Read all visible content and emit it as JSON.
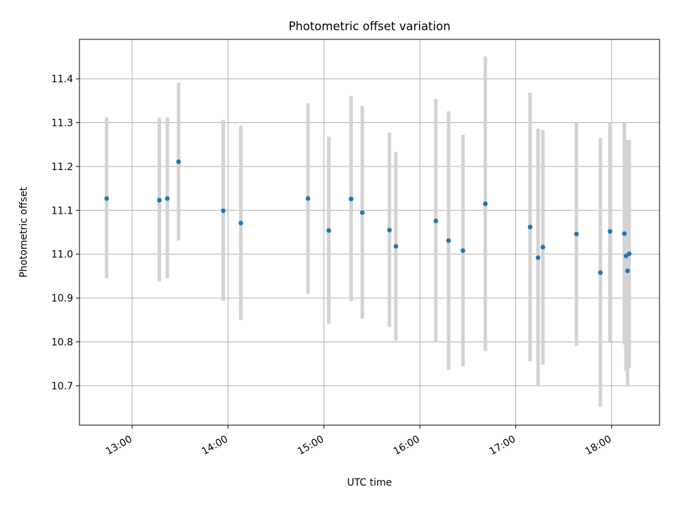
{
  "chart_data": {
    "type": "scatter",
    "title": "Photometric offset variation",
    "xlabel": "UTC time",
    "ylabel": "Photometric offset",
    "x_unit": "hours",
    "xlim": [
      "12:27",
      "18:30"
    ],
    "ylim": [
      10.61,
      11.49
    ],
    "x_ticks": [
      "13:00",
      "14:00",
      "15:00",
      "16:00",
      "17:00",
      "18:00"
    ],
    "y_ticks": [
      "10.7",
      "10.8",
      "10.9",
      "11.0",
      "11.1",
      "11.2",
      "11.3",
      "11.4"
    ],
    "grid": true,
    "point_color": "#1f77b4",
    "errorbar_color": "#d3d3d3",
    "points": [
      {
        "x": "12:44",
        "y": 11.127,
        "ylo": 10.945,
        "yhi": 11.312
      },
      {
        "x": "13:17",
        "y": 11.123,
        "ylo": 10.938,
        "yhi": 11.311
      },
      {
        "x": "13:22",
        "y": 11.127,
        "ylo": 10.945,
        "yhi": 11.312
      },
      {
        "x": "13:29",
        "y": 11.211,
        "ylo": 11.031,
        "yhi": 11.391
      },
      {
        "x": "13:57",
        "y": 11.099,
        "ylo": 10.894,
        "yhi": 11.306
      },
      {
        "x": "14:08",
        "y": 11.071,
        "ylo": 10.85,
        "yhi": 11.293
      },
      {
        "x": "14:50",
        "y": 11.127,
        "ylo": 10.91,
        "yhi": 11.344
      },
      {
        "x": "15:03",
        "y": 11.054,
        "ylo": 10.841,
        "yhi": 11.268
      },
      {
        "x": "15:17",
        "y": 11.126,
        "ylo": 10.893,
        "yhi": 11.361
      },
      {
        "x": "15:24",
        "y": 11.095,
        "ylo": 10.853,
        "yhi": 11.338
      },
      {
        "x": "15:41",
        "y": 11.055,
        "ylo": 10.834,
        "yhi": 11.277
      },
      {
        "x": "15:45",
        "y": 11.018,
        "ylo": 10.803,
        "yhi": 11.233
      },
      {
        "x": "16:10",
        "y": 11.076,
        "ylo": 10.8,
        "yhi": 11.354
      },
      {
        "x": "16:18",
        "y": 11.031,
        "ylo": 10.736,
        "yhi": 11.326
      },
      {
        "x": "16:27",
        "y": 11.008,
        "ylo": 10.744,
        "yhi": 11.272
      },
      {
        "x": "16:41",
        "y": 11.115,
        "ylo": 10.779,
        "yhi": 11.451
      },
      {
        "x": "17:09",
        "y": 11.062,
        "ylo": 10.756,
        "yhi": 11.368
      },
      {
        "x": "17:14",
        "y": 10.992,
        "ylo": 10.7,
        "yhi": 11.286
      },
      {
        "x": "17:17",
        "y": 11.016,
        "ylo": 10.748,
        "yhi": 11.283
      },
      {
        "x": "17:38",
        "y": 11.046,
        "ylo": 10.791,
        "yhi": 11.3
      },
      {
        "x": "17:53",
        "y": 10.958,
        "ylo": 10.652,
        "yhi": 11.265
      },
      {
        "x": "17:59",
        "y": 11.052,
        "ylo": 10.801,
        "yhi": 11.3
      },
      {
        "x": "18:08",
        "y": 11.047,
        "ylo": 10.794,
        "yhi": 11.3
      },
      {
        "x": "18:09",
        "y": 10.996,
        "ylo": 10.733,
        "yhi": 11.26
      },
      {
        "x": "18:10",
        "y": 10.962,
        "ylo": 10.698,
        "yhi": 11.227
      },
      {
        "x": "18:11",
        "y": 11.001,
        "ylo": 10.74,
        "yhi": 11.261
      }
    ]
  }
}
